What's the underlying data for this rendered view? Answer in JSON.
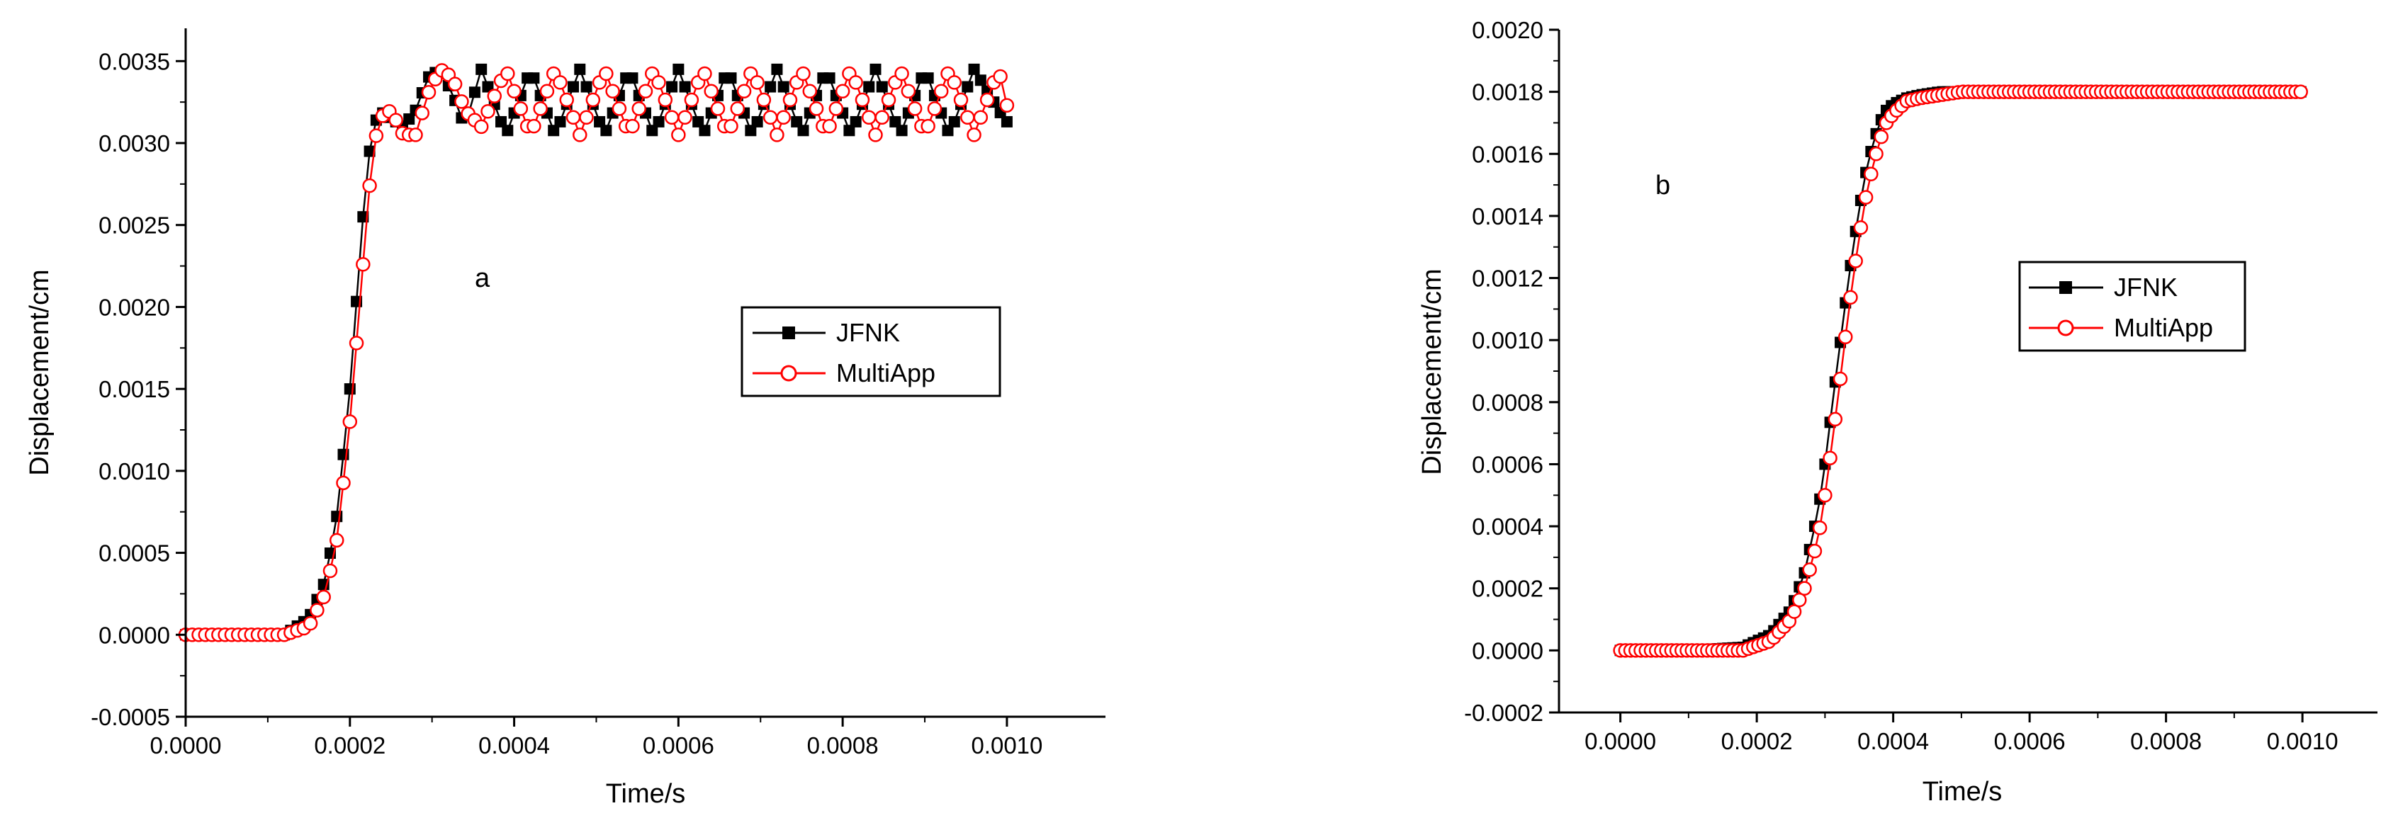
{
  "colors": {
    "jfnk": "#000000",
    "multiapp": "#ff0000",
    "axis": "#000000"
  },
  "chart_data": [
    {
      "type": "line",
      "annotation": "a",
      "xlabel": "Time/s",
      "ylabel": "Displacement/cm",
      "xlim": [
        0,
        0.00112
      ],
      "ylim": [
        -0.0005,
        0.0037
      ],
      "xticks": [
        "0.0000",
        "0.0002",
        "0.0004",
        "0.0006",
        "0.0008",
        "0.0010"
      ],
      "yticks": [
        "-0.0005",
        "0.0000",
        "0.0005",
        "0.0010",
        "0.0015",
        "0.0020",
        "0.0025",
        "0.0030",
        "0.0035"
      ],
      "legend": {
        "position": "center-right",
        "entries": [
          "JFNK",
          "MultiApp"
        ]
      },
      "grid": false,
      "x": [
        0,
        0.00012,
        0.00015,
        0.00017,
        0.000185,
        0.0002,
        0.000215,
        0.000225,
        0.000235,
        0.00025,
        0.000265,
        0.00028,
        0.000295,
        0.00031,
        0.000325,
        0.00034,
        0.00036,
        0.00039,
        0.00042,
        0.00045,
        0.00048,
        0.00051,
        0.00054,
        0.00057,
        0.0006,
        0.00063,
        0.00066,
        0.00069,
        0.00072,
        0.00075,
        0.00078,
        0.00081,
        0.00084,
        0.00087,
        0.0009,
        0.00093,
        0.00096,
        0.00099,
        0.001
      ],
      "series": [
        {
          "name": "JFNK",
          "marker": "square-filled",
          "values": [
            0,
            0,
            0.0001,
            0.00033,
            0.00075,
            0.0015,
            0.0025,
            0.003,
            0.0032,
            0.00315,
            0.0031,
            0.0032,
            0.0034,
            0.00345,
            0.0033,
            0.0031,
            0.00345,
            0.00305,
            0.00345,
            0.00305,
            0.00345,
            0.00305,
            0.00345,
            0.00305,
            0.00345,
            0.00305,
            0.00345,
            0.00305,
            0.00345,
            0.00305,
            0.00345,
            0.00305,
            0.00345,
            0.00305,
            0.00345,
            0.00305,
            0.00345,
            0.0032,
            0.00313
          ]
        },
        {
          "name": "MultiApp",
          "marker": "circle-open",
          "values": [
            0,
            0,
            5e-05,
            0.00025,
            0.0006,
            0.0013,
            0.0022,
            0.0028,
            0.00315,
            0.0032,
            0.00305,
            0.00305,
            0.0033,
            0.00345,
            0.0034,
            0.0032,
            0.0031,
            0.00345,
            0.00305,
            0.00345,
            0.00305,
            0.00345,
            0.00305,
            0.00345,
            0.00305,
            0.00345,
            0.00305,
            0.00345,
            0.00305,
            0.00345,
            0.00305,
            0.00345,
            0.00305,
            0.00345,
            0.00305,
            0.00345,
            0.00305,
            0.00345,
            0.00323
          ]
        }
      ]
    },
    {
      "type": "line",
      "annotation": "b",
      "xlabel": "Time/s",
      "ylabel": "Displacement/cm",
      "xlim": [
        -9e-05,
        0.00111
      ],
      "ylim": [
        -0.0002,
        0.002
      ],
      "xticks": [
        "0.0000",
        "0.0002",
        "0.0004",
        "0.0006",
        "0.0008",
        "0.0010"
      ],
      "yticks": [
        "-0.0002",
        "0.0000",
        "0.0002",
        "0.0004",
        "0.0006",
        "0.0008",
        "0.0010",
        "0.0012",
        "0.0014",
        "0.0016",
        "0.0018",
        "0.0020"
      ],
      "legend": {
        "position": "center-right",
        "entries": [
          "JFNK",
          "MultiApp"
        ]
      },
      "grid": false,
      "x": [
        0,
        0.0001,
        0.00018,
        0.00022,
        0.00025,
        0.00027,
        0.00029,
        0.0003,
        0.00031,
        0.00032,
        0.00033,
        0.00034,
        0.00035,
        0.00036,
        0.00037,
        0.00038,
        0.00039,
        0.0004,
        0.00041,
        0.00042,
        0.00044,
        0.00047,
        0.0005,
        0.0006,
        0.0007,
        0.0008,
        0.0009,
        0.001
      ],
      "series": [
        {
          "name": "JFNK",
          "marker": "square-filled",
          "values": [
            0,
            0,
            1e-05,
            5e-05,
            0.00013,
            0.00025,
            0.00045,
            0.0006,
            0.00078,
            0.00095,
            0.00112,
            0.00128,
            0.00142,
            0.00154,
            0.00163,
            0.0017,
            0.00174,
            0.00176,
            0.00177,
            0.00178,
            0.00179,
            0.0018,
            0.0018,
            0.0018,
            0.0018,
            0.0018,
            0.0018,
            0.0018
          ]
        },
        {
          "name": "MultiApp",
          "marker": "circle-open",
          "values": [
            0,
            0,
            0,
            3e-05,
            0.0001,
            0.0002,
            0.00036,
            0.0005,
            0.00066,
            0.00083,
            0.00101,
            0.00118,
            0.00133,
            0.00146,
            0.00156,
            0.00164,
            0.0017,
            0.00173,
            0.00175,
            0.00177,
            0.00178,
            0.00179,
            0.0018,
            0.0018,
            0.0018,
            0.0018,
            0.0018,
            0.0018
          ]
        }
      ]
    }
  ]
}
